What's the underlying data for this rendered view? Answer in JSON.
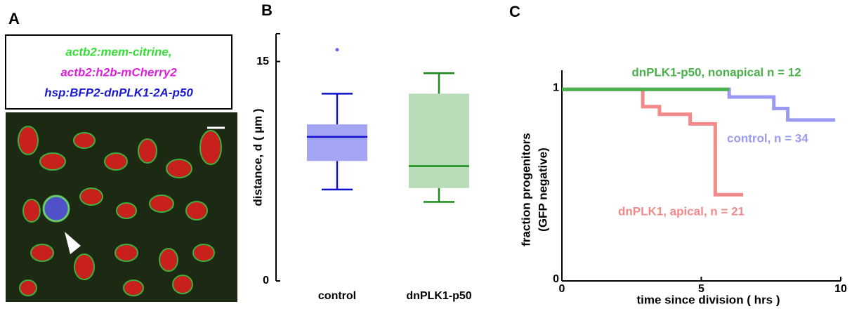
{
  "panel_labels": [
    "A",
    "B",
    "C"
  ],
  "image_panel": {
    "legend": [
      "actb2:mem-citrine,",
      "actb2:h2b-mCherry2",
      "hsp:BFP2-dnPLK1-2A-p50"
    ]
  },
  "chart_data": [
    {
      "type": "box",
      "ylabel": "distance, d ( µm )",
      "categories": [
        "control",
        "dnPLK1-p50"
      ],
      "colors": [
        "#1010cc",
        "#1a8a1a"
      ],
      "fill_colors": [
        "#a4a4f4",
        "#b8dcb8"
      ],
      "boxes": [
        {
          "whisker_low": 6.25,
          "q1": 8.2,
          "median": 9.85,
          "q3": 10.7,
          "whisker_high": 12.8,
          "outliers": [
            15.8
          ]
        },
        {
          "whisker_low": 5.4,
          "q1": 6.35,
          "median": 7.85,
          "q3": 12.8,
          "whisker_high": 14.2,
          "outliers": []
        }
      ],
      "ylim": [
        0,
        16.9
      ],
      "yticks": [
        0,
        15
      ]
    },
    {
      "type": "step",
      "xlabel": "time since division ( hrs )",
      "ylabel": [
        "fraction progenitors",
        "(GFP negative)"
      ],
      "xlim": [
        0,
        10
      ],
      "xticks": [
        0,
        5,
        10
      ],
      "ylim": [
        0,
        1.1
      ],
      "yticks": [
        0,
        1
      ],
      "series": [
        {
          "name": "dnPLK1-p50, nonapical n = 12",
          "color": "#4cb04c",
          "x": [
            0,
            6
          ],
          "values": [
            1,
            1
          ]
        },
        {
          "name": "control, n = 34",
          "color": "#9a9af0",
          "x": [
            0,
            6,
            7.6,
            8.1,
            9.8
          ],
          "values": [
            1,
            0.96,
            0.9,
            0.84,
            0.84
          ]
        },
        {
          "name": "dnPLK1, apical, n = 21",
          "color": "#f28a8a",
          "x": [
            0,
            2.9,
            3.5,
            4.6,
            5.5,
            6.5
          ],
          "values": [
            1,
            0.91,
            0.87,
            0.82,
            0.45,
            0.45
          ]
        }
      ]
    }
  ]
}
